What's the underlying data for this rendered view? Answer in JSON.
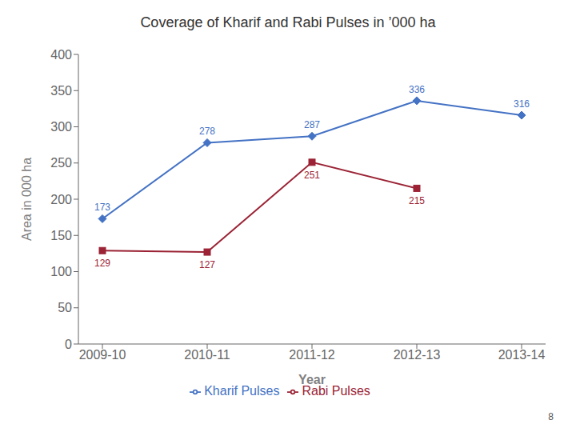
{
  "chart_data": {
    "type": "line",
    "title": "Coverage of Kharif and Rabi Pulses in ’000 ha",
    "x_label": "Year",
    "y_label": "Area in 000 ha",
    "categories": [
      "2009-10",
      "2010-11",
      "2011-12",
      "2012-13",
      "2013-14"
    ],
    "series": [
      {
        "name": "Kharif Pulses",
        "color": "#4472C4",
        "marker": "diamond",
        "values": [
          173,
          278,
          287,
          336,
          316
        ]
      },
      {
        "name": "Rabi Pulses",
        "color": "#9B2335",
        "marker": "square",
        "values": [
          129,
          127,
          251,
          215,
          null
        ]
      }
    ],
    "ylim": [
      0,
      400
    ],
    "yticks": [
      0,
      50,
      100,
      150,
      200,
      250,
      300,
      350,
      400
    ],
    "grid": false,
    "legend": "bottom",
    "data_labels": true,
    "annotations": [
      "8"
    ]
  }
}
